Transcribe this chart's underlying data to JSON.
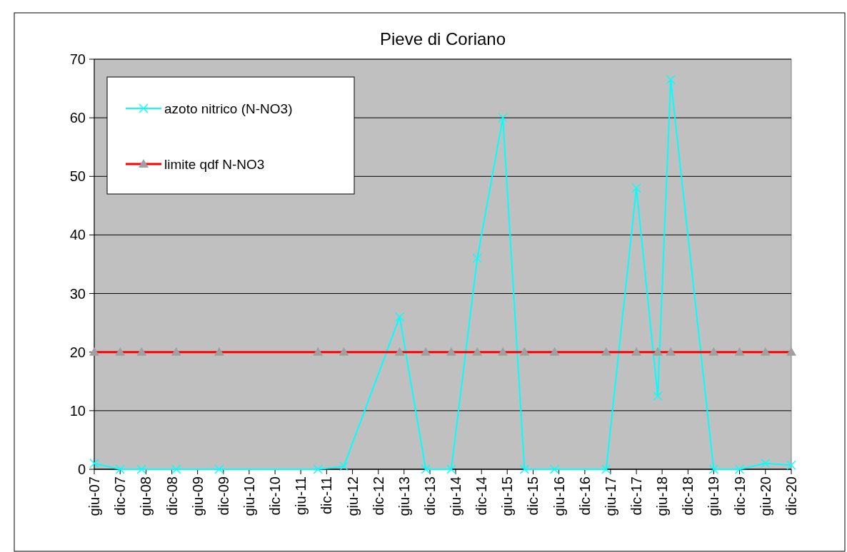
{
  "chart_data": {
    "type": "line",
    "title": "Pieve di Coriano",
    "x": [
      "2007-06",
      "2007-12",
      "2008-05",
      "2009-01",
      "2009-11",
      "2011-10",
      "2012-04",
      "2013-05",
      "2013-11",
      "2014-05",
      "2014-11",
      "2015-05",
      "2015-10",
      "2016-05",
      "2017-05",
      "2017-12",
      "2018-05",
      "2018-08",
      "2019-06",
      "2019-12",
      "2020-06",
      "2020-12"
    ],
    "series": [
      {
        "name": "azoto nitrico (N-NO3)",
        "color": "#00ffff",
        "marker": "cross",
        "values": [
          1,
          0,
          0,
          0,
          0,
          0,
          0.5,
          26,
          0,
          0,
          36,
          60,
          0,
          0,
          0,
          48,
          12.5,
          66.5,
          0,
          0,
          1,
          0.7
        ]
      },
      {
        "name": "limite qdf N-NO3",
        "color": "#ff0000",
        "marker": "triangle",
        "values": [
          20,
          20,
          20,
          20,
          20,
          20,
          20,
          20,
          20,
          20,
          20,
          20,
          20,
          20,
          20,
          20,
          20,
          20,
          20,
          20,
          20,
          20
        ]
      }
    ],
    "xlim": [
      "2007-06",
      "2020-12"
    ],
    "xticks": [
      {
        "value": "2007-06",
        "label": "giu-07"
      },
      {
        "value": "2007-12",
        "label": "dic-07"
      },
      {
        "value": "2008-06",
        "label": "giu-08"
      },
      {
        "value": "2008-12",
        "label": "dic-08"
      },
      {
        "value": "2009-06",
        "label": "giu-09"
      },
      {
        "value": "2009-12",
        "label": "dic-09"
      },
      {
        "value": "2010-06",
        "label": "giu-10"
      },
      {
        "value": "2010-12",
        "label": "dic-10"
      },
      {
        "value": "2011-06",
        "label": "giu-11"
      },
      {
        "value": "2011-12",
        "label": "dic-11"
      },
      {
        "value": "2012-06",
        "label": "giu-12"
      },
      {
        "value": "2012-12",
        "label": "dic-12"
      },
      {
        "value": "2013-06",
        "label": "giu-13"
      },
      {
        "value": "2013-12",
        "label": "dic-13"
      },
      {
        "value": "2014-06",
        "label": "giu-14"
      },
      {
        "value": "2014-12",
        "label": "dic-14"
      },
      {
        "value": "2015-06",
        "label": "giu-15"
      },
      {
        "value": "2015-12",
        "label": "dic-15"
      },
      {
        "value": "2016-06",
        "label": "giu-16"
      },
      {
        "value": "2016-12",
        "label": "dic-16"
      },
      {
        "value": "2017-06",
        "label": "giu-17"
      },
      {
        "value": "2017-12",
        "label": "dic-17"
      },
      {
        "value": "2018-06",
        "label": "giu-18"
      },
      {
        "value": "2018-12",
        "label": "dic-18"
      },
      {
        "value": "2019-06",
        "label": "giu-19"
      },
      {
        "value": "2019-12",
        "label": "dic-19"
      },
      {
        "value": "2020-06",
        "label": "giu-20"
      },
      {
        "value": "2020-12",
        "label": "dic-20"
      }
    ],
    "ylim": [
      0,
      70
    ],
    "yticks": [
      0,
      10,
      20,
      30,
      40,
      50,
      60,
      70
    ],
    "grid": "y",
    "legend": "top left"
  }
}
